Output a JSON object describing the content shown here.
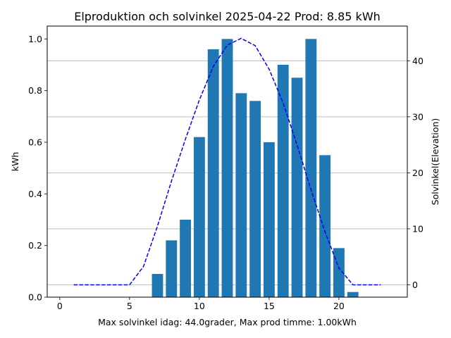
{
  "chart_data": {
    "type": "bar",
    "title": "Elproduktion och solvinkel 2025-04-22 Prod: 8.85 kWh",
    "xlabel": "Max solvinkel idag: 44.0grader, Max prod timme: 1.00kWh",
    "ylabel": "kWh",
    "y2label": "Solvinkel(Elevation)",
    "xlim": [
      -0.9,
      24.9
    ],
    "ylim": [
      0,
      1.05
    ],
    "y2lim": [
      -2.2,
      46.2
    ],
    "xticks": [
      0,
      5,
      10,
      15,
      20
    ],
    "yticks": [
      0.0,
      0.2,
      0.4,
      0.6,
      0.8,
      1.0
    ],
    "y2ticks": [
      0,
      10,
      20,
      30,
      40
    ],
    "grid": "horizontal lines at right-axis ticks",
    "bar_color": "#1f77b4",
    "line_color": "#0000ff",
    "series": [
      {
        "kind": "bar",
        "axis": "left",
        "x": [
          7,
          8,
          9,
          10,
          11,
          12,
          13,
          14,
          15,
          16,
          17,
          18,
          19,
          20,
          21
        ],
        "values": [
          0.09,
          0.22,
          0.3,
          0.62,
          0.96,
          1.0,
          0.79,
          0.76,
          0.6,
          0.9,
          0.85,
          1.0,
          0.55,
          0.19,
          0.02
        ]
      },
      {
        "kind": "line",
        "style": "dashed",
        "axis": "right",
        "x": [
          1,
          2,
          3,
          4,
          5,
          6,
          7,
          8,
          9,
          10,
          11,
          12,
          13,
          14,
          15,
          16,
          17,
          18,
          19,
          20,
          21,
          22,
          23
        ],
        "values": [
          0,
          0,
          0,
          0,
          0,
          3.3,
          10.5,
          18.5,
          26.0,
          33.0,
          39.0,
          42.8,
          44.0,
          42.7,
          38.5,
          32.5,
          25.0,
          17.0,
          9.5,
          3.0,
          0,
          0,
          0
        ]
      }
    ]
  }
}
